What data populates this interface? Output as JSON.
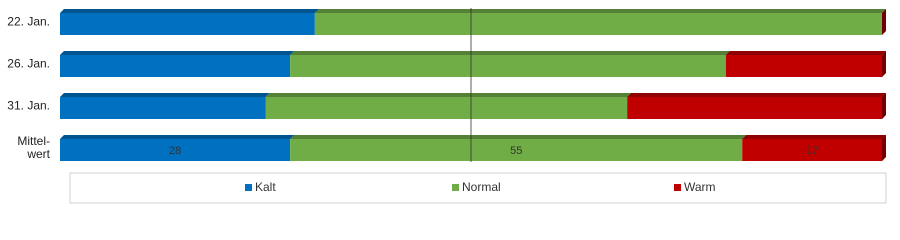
{
  "chart_data": {
    "type": "stacked-bar-horizontal",
    "categories": [
      "22. Jan.",
      "26. Jan.",
      "31. Jan.",
      "Mittel-wert"
    ],
    "series": [
      {
        "name": "Kalt",
        "color": "#0070c0",
        "values": [
          31,
          28,
          25,
          28
        ]
      },
      {
        "name": "Normal",
        "color": "#70ad47",
        "values": [
          69,
          53,
          44,
          55
        ]
      },
      {
        "name": "Warm",
        "color": "#c00000",
        "values": [
          0,
          19,
          31,
          17
        ]
      }
    ],
    "xlim": [
      0,
      100
    ],
    "legend": "bottom"
  }
}
